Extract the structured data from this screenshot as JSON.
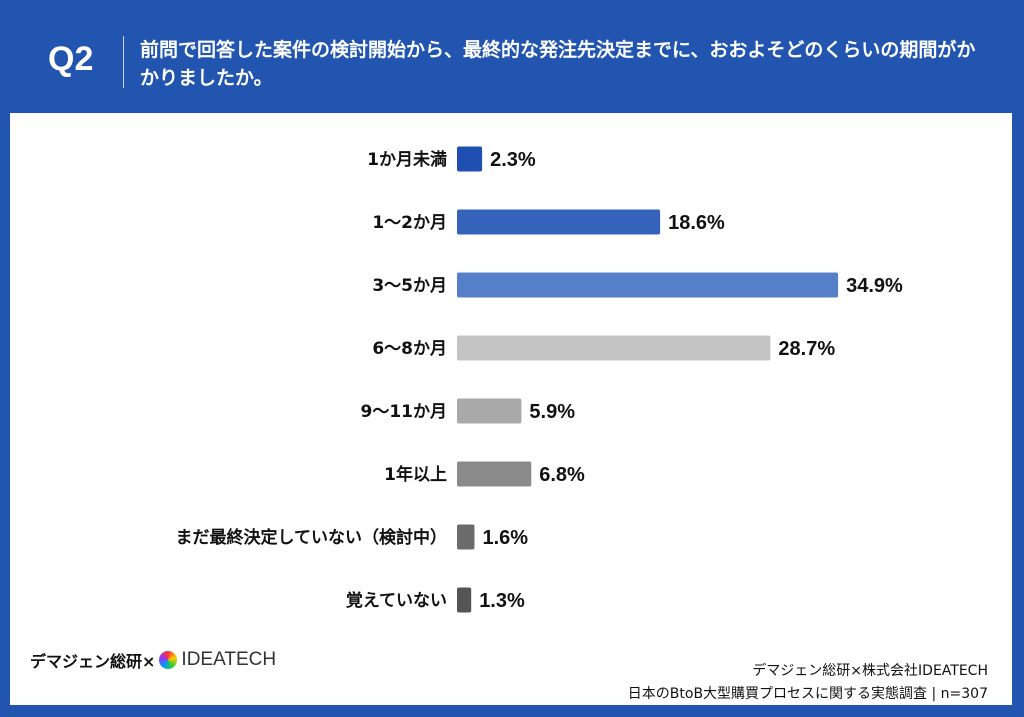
{
  "header": {
    "question_number": "Q2",
    "question_text": "前問で回答した案件の検討開始から、最終的な発注先決定までに、おおよそどのくらいの期間がかかりましたか。"
  },
  "chart_data": {
    "type": "bar",
    "orientation": "horizontal",
    "categories": [
      "1か月未満",
      "1〜2か月",
      "3〜5か月",
      "6〜8か月",
      "9〜11か月",
      "1年以上",
      "まだ最終決定していない（検討中）",
      "覚えていない"
    ],
    "values": [
      2.3,
      18.6,
      34.9,
      28.7,
      5.9,
      6.8,
      1.6,
      1.3
    ],
    "value_labels": [
      "2.3%",
      "18.6%",
      "34.9%",
      "28.7%",
      "5.9%",
      "6.8%",
      "1.6%",
      "1.3%"
    ],
    "unit": "%",
    "colors": [
      "#1f4fb0",
      "#3563bb",
      "#5580c8",
      "#c4c4c4",
      "#a9a9a9",
      "#8a8a8a",
      "#6b6b6b",
      "#555555"
    ],
    "grid": false,
    "legend": "none"
  },
  "footer": {
    "logo_text": "デマジェン総研×",
    "logo_brand": "IDEATECH",
    "credit_line1": "デマジェン総研×株式会社IDEATECH",
    "credit_line2": "日本のBtoB大型購買プロセスに関する実態調査 | n=307"
  }
}
